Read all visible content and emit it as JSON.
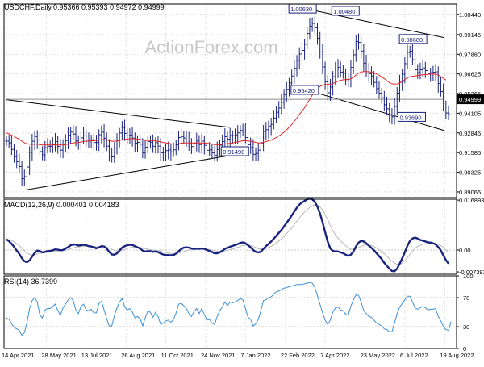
{
  "chart_data": [
    {
      "type": "line",
      "panel": "price",
      "title": "USDCHF,Daily",
      "ohlc": "0.95366 0.95393 0.94972 0.94999",
      "watermark": "ActionForex.com",
      "ylim": [
        0.887,
        1.011
      ],
      "y_ticks": [
        "1.00440",
        "0.99145",
        "0.97880",
        "0.96625",
        "0.95365",
        "0.94105",
        "0.92845",
        "0.91585",
        "0.90325",
        "0.89065"
      ],
      "current_price_label": "0.94999",
      "grid": true,
      "x_ticks": [
        "14 Apr 2021",
        "28 May 2021",
        "13 Jul 2021",
        "26 Aug 2021",
        "11 Oct 2021",
        "24 Nov 2021",
        "7 Jan 2022",
        "22 Feb 2022",
        "7 Apr 2022",
        "23 May 2022",
        "6 Jul 2022",
        "19 Aug 2022"
      ],
      "close_series": [
        0.9232,
        0.9221,
        0.9179,
        0.9132,
        0.91,
        0.9069,
        0.8991,
        0.9004,
        0.9066,
        0.916,
        0.9231,
        0.9261,
        0.9239,
        0.9165,
        0.9144,
        0.919,
        0.9199,
        0.9198,
        0.9211,
        0.9229,
        0.9198,
        0.9174,
        0.9212,
        0.9236,
        0.9269,
        0.929,
        0.9277,
        0.9233,
        0.9213,
        0.9253,
        0.9266,
        0.9239,
        0.9233,
        0.9241,
        0.9223,
        0.9223,
        0.9273,
        0.9289,
        0.9251,
        0.92,
        0.9135,
        0.9131,
        0.9187,
        0.9235,
        0.9284,
        0.9319,
        0.9281,
        0.9266,
        0.9271,
        0.9251,
        0.9219,
        0.9224,
        0.9212,
        0.9156,
        0.9193,
        0.9229,
        0.9225,
        0.9199,
        0.9222,
        0.92,
        0.9157,
        0.916,
        0.9171,
        0.9175,
        0.9163,
        0.9176,
        0.9209,
        0.9255,
        0.9261,
        0.9252,
        0.9239,
        0.9215,
        0.9197,
        0.9218,
        0.9232,
        0.921,
        0.9232,
        0.9205,
        0.9173,
        0.9176,
        0.9156,
        0.9142,
        0.9178,
        0.9206,
        0.9229,
        0.926,
        0.9245,
        0.9268,
        0.9267,
        0.9272,
        0.9285,
        0.93,
        0.9296,
        0.9255,
        0.9209,
        0.9191,
        0.9147,
        0.9153,
        0.9174,
        0.922,
        0.9294,
        0.9305,
        0.9329,
        0.9339,
        0.938,
        0.9417,
        0.9444,
        0.948,
        0.9528,
        0.9563,
        0.9604,
        0.9649,
        0.9698,
        0.9749,
        0.979,
        0.9813,
        0.9852,
        0.9921,
        0.9968,
        0.9986,
        0.9958,
        0.989,
        0.9803,
        0.9707,
        0.9612,
        0.9542,
        0.9578,
        0.9644,
        0.9694,
        0.9704,
        0.9674,
        0.9666,
        0.9627,
        0.9617,
        0.9704,
        0.9785,
        0.9869,
        0.9864,
        0.9809,
        0.9731,
        0.9694,
        0.9664,
        0.9649,
        0.9608,
        0.9568,
        0.9539,
        0.951,
        0.9465,
        0.9439,
        0.9398,
        0.9387,
        0.9454,
        0.9539,
        0.9609,
        0.966,
        0.9728,
        0.98,
        0.9808,
        0.9753,
        0.9689,
        0.9671,
        0.9689,
        0.9701,
        0.9684,
        0.9664,
        0.967,
        0.9673,
        0.9676,
        0.9601,
        0.9549,
        0.9456,
        0.9412,
        0.9405
      ],
      "close_series_end": 0.94999,
      "series": [
        {
          "name": "",
          "kind": "moving-average",
          "values": [
            0.9285,
            0.9278,
            0.927,
            0.9262,
            0.9252,
            0.9244,
            0.9232,
            0.9222,
            0.9214,
            0.9212,
            0.9211,
            0.9212,
            0.9213,
            0.921,
            0.9207,
            0.9207,
            0.9207,
            0.9207,
            0.9207,
            0.9208,
            0.9208,
            0.9207,
            0.9208,
            0.921,
            0.9213,
            0.9217,
            0.9221,
            0.9222,
            0.9223,
            0.9226,
            0.923,
            0.9231,
            0.9232,
            0.9234,
            0.9234,
            0.9235,
            0.9238,
            0.9241,
            0.9242,
            0.9239,
            0.9235,
            0.9231,
            0.9231,
            0.9232,
            0.9236,
            0.924,
            0.9243,
            0.9245,
            0.9247,
            0.9248,
            0.9246,
            0.9245,
            0.9243,
            0.9239,
            0.9237,
            0.9237,
            0.9236,
            0.9234,
            0.9233,
            0.9231,
            0.9227,
            0.9223,
            0.9221,
            0.9218,
            0.9215,
            0.9213,
            0.9213,
            0.9215,
            0.9218,
            0.922,
            0.9221,
            0.9221,
            0.922,
            0.922,
            0.9221,
            0.922,
            0.9221,
            0.922,
            0.9218,
            0.9216,
            0.9213,
            0.921,
            0.9209,
            0.9209,
            0.9211,
            0.9214,
            0.9215,
            0.9218,
            0.9221,
            0.9224,
            0.9227,
            0.9231,
            0.9234,
            0.9235,
            0.9233,
            0.9231,
            0.9227,
            0.9224,
            0.9221,
            0.9221,
            0.9225,
            0.9229,
            0.9234,
            0.9239,
            0.9246,
            0.9255,
            0.9265,
            0.9276,
            0.9289,
            0.9304,
            0.932,
            0.9338,
            0.9358,
            0.9379,
            0.9402,
            0.9424,
            0.9446,
            0.9473,
            0.95,
            0.9526,
            0.955,
            0.9568,
            0.9582,
            0.9591,
            0.9595,
            0.9595,
            0.9596,
            0.9601,
            0.9608,
            0.9616,
            0.9621,
            0.9625,
            0.9626,
            0.9626,
            0.9631,
            0.9641,
            0.9655,
            0.9667,
            0.9674,
            0.9677,
            0.9677,
            0.9676,
            0.9674,
            0.9669,
            0.9662,
            0.9654,
            0.9643,
            0.9632,
            0.9619,
            0.9606,
            0.9599,
            0.9597,
            0.9598,
            0.9604,
            0.9614,
            0.9626,
            0.9637,
            0.9644,
            0.9648,
            0.9649,
            0.9652,
            0.9655,
            0.9657,
            0.9658,
            0.9659,
            0.9661,
            0.9662,
            0.966,
            0.9655,
            0.9645,
            0.9634,
            0.9623
          ]
        }
      ],
      "price_labels": [
        "1.00630",
        "1.00480",
        "0.98680",
        "0.95420",
        "0.93690",
        "0.91490"
      ]
    },
    {
      "type": "line",
      "panel": "macd",
      "title": "MACD(12,26,9) 0.000401 0.004183",
      "ylim": [
        -0.0082,
        0.0172
      ],
      "y_ticks": [
        "0.016893",
        "0.00",
        "-0.007393"
      ],
      "series": [
        {
          "name": "",
          "values": [
            0.0036,
            0.003,
            0.0021,
            0.001,
            -0.0002,
            -0.0013,
            -0.0028,
            -0.0038,
            -0.0041,
            -0.0035,
            -0.0022,
            -0.001,
            -0.0002,
            -0.0004,
            -0.0008,
            -0.0006,
            -0.0004,
            -0.0003,
            -0.0001,
            0.0002,
            0.0001,
            -0.0001,
            0.0,
            0.0005,
            0.001,
            0.0016,
            0.0019,
            0.0018,
            0.0015,
            0.0016,
            0.0018,
            0.0016,
            0.0013,
            0.0012,
            0.0009,
            0.0006,
            0.0009,
            0.0013,
            0.0012,
            0.0005,
            -0.0006,
            -0.0015,
            -0.0016,
            -0.0011,
            -0.0002,
            0.0008,
            0.0013,
            0.0016,
            0.0018,
            0.0017,
            0.0013,
            0.0009,
            0.0005,
            -0.0002,
            -0.0005,
            -0.0004,
            -0.0004,
            -0.0006,
            -0.0005,
            -0.0007,
            -0.0012,
            -0.0015,
            -0.0017,
            -0.0017,
            -0.0018,
            -0.0017,
            -0.0012,
            -0.0004,
            0.0003,
            0.0008,
            0.0009,
            0.0008,
            0.0005,
            0.0004,
            0.0005,
            0.0004,
            0.0005,
            0.0004,
            0.0,
            -0.0003,
            -0.0007,
            -0.0011,
            -0.0011,
            -0.0008,
            -0.0003,
            0.0004,
            0.0007,
            0.0011,
            0.0014,
            0.0017,
            0.002,
            0.0024,
            0.0026,
            0.0023,
            0.0016,
            0.0009,
            0.0,
            -0.0006,
            -0.0008,
            -0.0006,
            0.0004,
            0.0013,
            0.0021,
            0.0029,
            0.0038,
            0.0048,
            0.0058,
            0.0068,
            0.008,
            0.0092,
            0.0104,
            0.0117,
            0.013,
            0.0143,
            0.0154,
            0.0161,
            0.0166,
            0.0172,
            0.0174,
            0.0172,
            0.0163,
            0.0147,
            0.0124,
            0.0094,
            0.006,
            0.0028,
            0.0006,
            -0.0003,
            -0.0005,
            -0.0005,
            -0.0008,
            -0.0011,
            -0.0016,
            -0.002,
            -0.0016,
            -0.0005,
            0.0012,
            0.0025,
            0.0031,
            0.0029,
            0.0023,
            0.0015,
            0.0007,
            -0.0001,
            -0.0011,
            -0.0021,
            -0.0031,
            -0.0043,
            -0.0053,
            -0.0063,
            -0.0071,
            -0.0072,
            -0.0063,
            -0.0046,
            -0.0028,
            -0.0008,
            0.0014,
            0.0031,
            0.0039,
            0.0042,
            0.0039,
            0.0034,
            0.0032,
            0.0029,
            0.0026,
            0.0025,
            0.0023,
            0.0019,
            0.001,
            -0.0001,
            -0.0018,
            -0.0034,
            -0.0046
          ]
        }
      ]
    },
    {
      "type": "line",
      "panel": "rsi",
      "title": "RSI(14) 36.7399",
      "ylim": [
        0,
        100
      ],
      "y_ticks": [
        "100",
        "70",
        "30",
        "0"
      ],
      "series": [
        {
          "name": "",
          "values": [
            42,
            40,
            34,
            29,
            27,
            25,
            18,
            22,
            36,
            55,
            66,
            70,
            64,
            46,
            42,
            53,
            55,
            55,
            58,
            61,
            52,
            46,
            56,
            61,
            67,
            70,
            66,
            53,
            48,
            58,
            61,
            53,
            52,
            54,
            49,
            49,
            62,
            65,
            53,
            41,
            31,
            31,
            45,
            56,
            64,
            69,
            57,
            53,
            55,
            50,
            42,
            44,
            41,
            31,
            42,
            51,
            50,
            43,
            50,
            44,
            33,
            35,
            38,
            39,
            36,
            40,
            49,
            61,
            62,
            59,
            55,
            48,
            44,
            51,
            55,
            48,
            55,
            47,
            39,
            40,
            35,
            33,
            44,
            52,
            57,
            64,
            59,
            64,
            63,
            64,
            66,
            69,
            67,
            55,
            43,
            40,
            31,
            34,
            40,
            52,
            66,
            67,
            70,
            71,
            75,
            78,
            79,
            81,
            83,
            84,
            85,
            86,
            87,
            88,
            88,
            88,
            89,
            90,
            91,
            90,
            84,
            73,
            61,
            49,
            39,
            33,
            39,
            50,
            56,
            57,
            53,
            52,
            47,
            46,
            58,
            67,
            74,
            73,
            64,
            52,
            48,
            44,
            43,
            39,
            35,
            33,
            31,
            27,
            26,
            23,
            23,
            35,
            48,
            57,
            62,
            67,
            72,
            72,
            64,
            56,
            54,
            56,
            58,
            56,
            53,
            54,
            54,
            55,
            44,
            38,
            30,
            26,
            25,
            37
          ]
        }
      ]
    }
  ]
}
